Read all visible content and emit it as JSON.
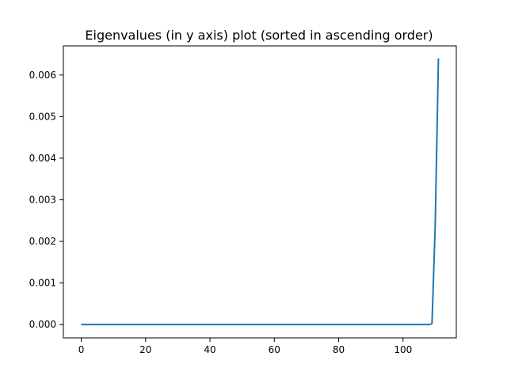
{
  "chart_data": {
    "type": "line",
    "title": "Eigenvalues (in y axis) plot (sorted in ascending order)",
    "xlabel": "",
    "ylabel": "",
    "xlim": [
      -5.55,
      116.55
    ],
    "ylim": [
      -0.00032,
      0.0067
    ],
    "x_ticks": [
      0,
      20,
      40,
      60,
      80,
      100
    ],
    "x_tick_labels": [
      "0",
      "20",
      "40",
      "60",
      "80",
      "100"
    ],
    "y_ticks": [
      0.0,
      0.001,
      0.002,
      0.003,
      0.004,
      0.005,
      0.006
    ],
    "y_tick_labels": [
      "0.000",
      "0.001",
      "0.002",
      "0.003",
      "0.004",
      "0.005",
      "0.006"
    ],
    "grid": false,
    "legend": false,
    "colors": {
      "line": "#1f77b4",
      "axes": "#000000",
      "background": "#ffffff"
    },
    "series": [
      {
        "x": [
          0,
          20,
          40,
          60,
          80,
          100,
          105,
          108,
          109,
          110,
          111
        ],
        "y": [
          0.0,
          0.0,
          0.0,
          0.0,
          0.0,
          0.0,
          0.0,
          0.0,
          2e-05,
          0.0024,
          0.0064
        ]
      }
    ]
  }
}
